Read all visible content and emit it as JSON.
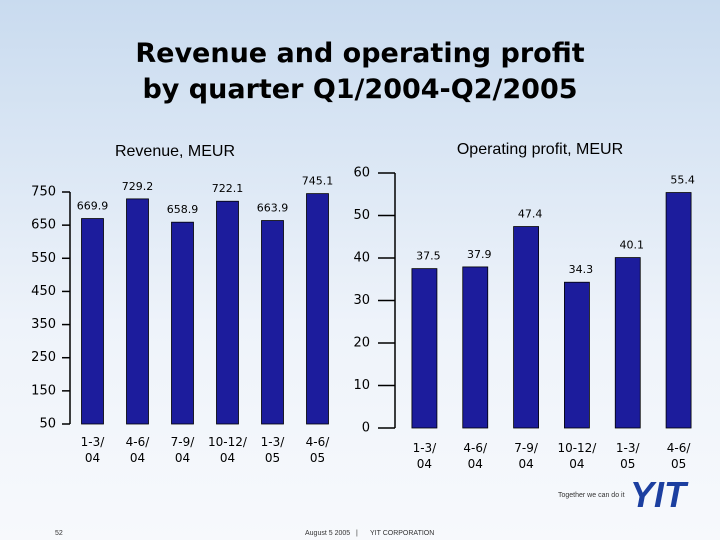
{
  "title": "Revenue and operating profit\nby quarter Q1/2004-Q2/2005",
  "chart_data": [
    {
      "type": "bar",
      "title": "Revenue, MEUR",
      "categories": [
        "1-3/\n04",
        "4-6/\n04",
        "7-9/\n04",
        "10-12/\n04",
        "1-3/\n05",
        "4-6/\n05"
      ],
      "values": [
        669.9,
        729.2,
        658.9,
        722.1,
        663.9,
        745.1
      ],
      "color": "#1c1c9c",
      "ylim": [
        50,
        750
      ],
      "yticks": [
        50,
        150,
        250,
        350,
        450,
        550,
        650,
        750
      ]
    },
    {
      "type": "bar",
      "title": "Operating profit, MEUR",
      "categories": [
        "1-3/\n04",
        "4-6/\n04",
        "7-9/\n04",
        "10-12/\n04",
        "1-3/\n05",
        "4-6/\n05"
      ],
      "values": [
        37.5,
        37.9,
        47.4,
        34.3,
        40.1,
        55.4
      ],
      "color": "#1c1c9c",
      "ylim": [
        0,
        60
      ],
      "yticks": [
        0,
        10,
        20,
        30,
        40,
        50,
        60
      ]
    }
  ],
  "footer": {
    "tagline": "Together we can do it",
    "logo": "YIT",
    "page": "52",
    "date": "August 5 2005",
    "separator": "|",
    "company": "YIT CORPORATION"
  }
}
